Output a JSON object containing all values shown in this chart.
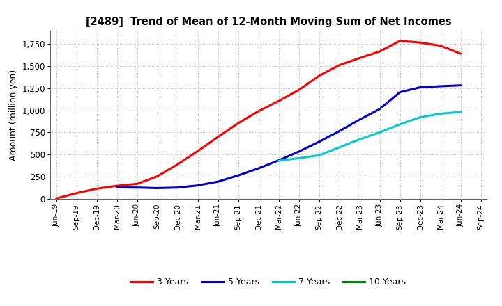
{
  "title": "[2489]  Trend of Mean of 12-Month Moving Sum of Net Incomes",
  "ylabel": "Amount (million yen)",
  "background_color": "#ffffff",
  "plot_bg_color": "#ffffff",
  "grid_color": "#999999",
  "ylim": [
    0,
    1900
  ],
  "yticks": [
    0,
    250,
    500,
    750,
    1000,
    1250,
    1500,
    1750
  ],
  "legend_labels": [
    "3 Years",
    "5 Years",
    "7 Years",
    "10 Years"
  ],
  "legend_colors": [
    "#ff0000",
    "#0000cc",
    "#00cccc",
    "#008800"
  ],
  "x_labels": [
    "Jun-19",
    "Sep-19",
    "Dec-19",
    "Mar-20",
    "Jun-20",
    "Sep-20",
    "Dec-20",
    "Mar-21",
    "Jun-21",
    "Sep-21",
    "Dec-21",
    "Mar-22",
    "Jun-22",
    "Sep-22",
    "Dec-22",
    "Mar-23",
    "Jun-23",
    "Sep-23",
    "Dec-23",
    "Mar-24",
    "Jun-24",
    "Sep-24"
  ],
  "series_3yr": [
    5,
    65,
    115,
    148,
    170,
    255,
    390,
    540,
    700,
    855,
    990,
    1105,
    1230,
    1390,
    1510,
    1590,
    1665,
    1785,
    1765,
    1730,
    1640,
    null
  ],
  "series_5yr": [
    null,
    null,
    null,
    130,
    128,
    122,
    128,
    152,
    195,
    265,
    345,
    435,
    535,
    645,
    765,
    895,
    1015,
    1205,
    1260,
    1272,
    1282,
    null
  ],
  "series_7yr": [
    null,
    null,
    null,
    null,
    null,
    null,
    null,
    null,
    null,
    null,
    null,
    430,
    460,
    492,
    582,
    672,
    752,
    842,
    922,
    962,
    982,
    null
  ],
  "series_10yr": [
    null,
    null,
    null,
    null,
    null,
    null,
    null,
    null,
    null,
    null,
    null,
    null,
    null,
    null,
    null,
    null,
    null,
    null,
    null,
    null,
    null,
    null
  ]
}
